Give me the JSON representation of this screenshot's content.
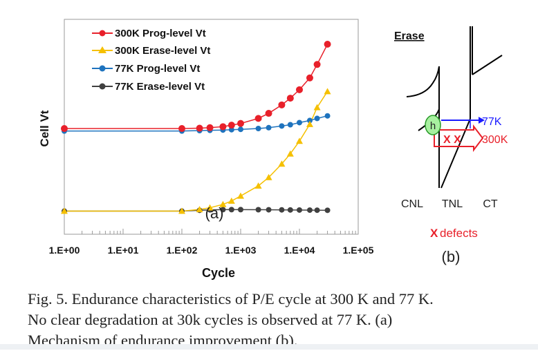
{
  "chart_data": {
    "type": "scatter",
    "panel_label": "(a)",
    "xlabel": "Cycle",
    "ylabel": "Cell Vt",
    "xscale": "log",
    "xlim": [
      1,
      100000
    ],
    "x_ticks": [
      "1.E+00",
      "1.E+01",
      "1.E+02",
      "1.E+03",
      "1.E+04",
      "1.E+05"
    ],
    "legend_position": "top-left",
    "grid": false,
    "series": [
      {
        "name": "300K Prog-level Vt",
        "color": "#e8202a",
        "marker": "circle",
        "x": [
          1,
          100,
          200,
          300,
          500,
          700,
          1000,
          2000,
          3000,
          5000,
          7000,
          10000,
          15000,
          20000,
          30000
        ],
        "y": [
          0.0,
          0.0,
          0.004,
          0.01,
          0.022,
          0.04,
          0.06,
          0.12,
          0.18,
          0.28,
          0.36,
          0.46,
          0.6,
          0.76,
          1.0
        ]
      },
      {
        "name": "300K Erase-level Vt",
        "color": "#f5c000",
        "marker": "triangle",
        "x": [
          1,
          100,
          200,
          300,
          500,
          700,
          1000,
          2000,
          3000,
          5000,
          7000,
          10000,
          15000,
          20000,
          30000
        ],
        "y": [
          -0.98,
          -0.98,
          -0.96,
          -0.94,
          -0.9,
          -0.86,
          -0.8,
          -0.68,
          -0.58,
          -0.42,
          -0.3,
          -0.15,
          0.05,
          0.25,
          0.44
        ]
      },
      {
        "name": "77K Prog-level Vt",
        "color": "#1e73be",
        "marker": "circle",
        "x": [
          1,
          100,
          200,
          300,
          500,
          700,
          1000,
          2000,
          3000,
          5000,
          7000,
          10000,
          15000,
          20000,
          30000
        ],
        "y": [
          -0.03,
          -0.03,
          -0.025,
          -0.022,
          -0.018,
          -0.014,
          -0.01,
          0.0,
          0.01,
          0.03,
          0.045,
          0.07,
          0.095,
          0.12,
          0.15
        ]
      },
      {
        "name": "77K Erase-level Vt",
        "color": "#404040",
        "marker": "circle",
        "x": [
          1,
          100,
          200,
          300,
          500,
          700,
          1000,
          2000,
          3000,
          5000,
          7000,
          10000,
          15000,
          20000,
          30000
        ],
        "y": [
          -0.98,
          -0.98,
          -0.97,
          -0.965,
          -0.962,
          -0.962,
          -0.962,
          -0.963,
          -0.964,
          -0.965,
          -0.966,
          -0.967,
          -0.968,
          -0.969,
          -0.97
        ]
      }
    ]
  },
  "diagram": {
    "title": "Erase",
    "hole_label": "h",
    "label_77k": "77K",
    "label_300k": "300K",
    "marks": "X X",
    "layer_labels": [
      "CNL",
      "TNL",
      "CT"
    ],
    "defects_mark": "X",
    "defects_label": "defects",
    "panel_label": "(b)",
    "colors": {
      "blue": "#1a1aff",
      "red": "#e8202a",
      "hole": "#a8f0a0"
    }
  },
  "caption": {
    "lines": [
      "Fig. 5. Endurance characteristics of P/E cycle at 300 K and 77 K.",
      "No clear degradation at 30k cycles is observed at 77 K. (a)",
      "Mechanism of endurance improvement (b)."
    ]
  }
}
